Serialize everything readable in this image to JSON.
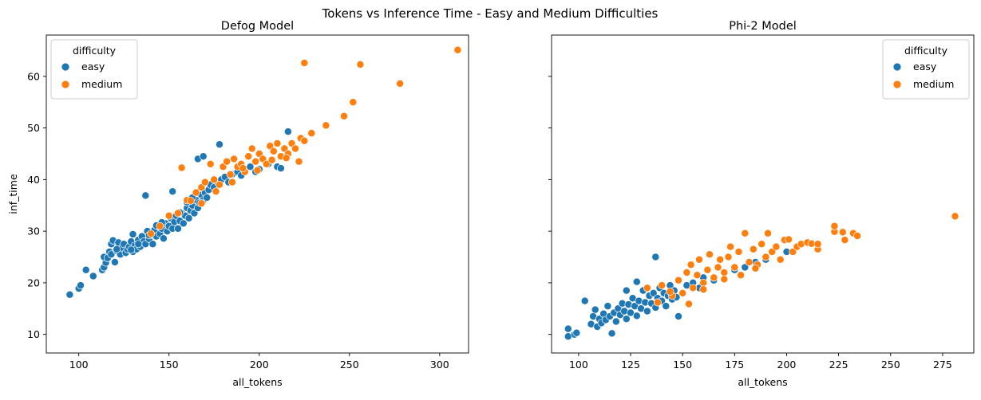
{
  "figure_title": "Tokens vs Inference Time - Easy and Medium Difficulties",
  "colors": {
    "easy": "#1f77b4",
    "medium": "#ff7f0e"
  },
  "chart_data": [
    {
      "type": "scatter",
      "title": "Defog Model",
      "xlabel": "all_tokens",
      "ylabel": "inf_time",
      "xlim": [
        82,
        316
      ],
      "ylim": [
        6.4,
        68
      ],
      "xticks": [
        100,
        150,
        200,
        250,
        300
      ],
      "yticks": [
        10,
        20,
        30,
        40,
        50,
        60
      ],
      "legend": {
        "title": "difficulty",
        "position": "top-left"
      },
      "grid": false,
      "series": [
        {
          "name": "easy",
          "color": "#1f77b4",
          "points": [
            [
              95,
              17.7
            ],
            [
              100,
              18.9
            ],
            [
              101,
              19.5
            ],
            [
              104,
              22.5
            ],
            [
              108,
              21.3
            ],
            [
              113,
              22.5
            ],
            [
              114,
              23.0
            ],
            [
              115,
              23.9
            ],
            [
              114,
              25.0
            ],
            [
              116,
              24.8
            ],
            [
              117,
              26.0
            ],
            [
              118,
              25.5
            ],
            [
              118,
              27.5
            ],
            [
              119,
              28.2
            ],
            [
              120,
              24.0
            ],
            [
              121,
              26.2
            ],
            [
              122,
              27.8
            ],
            [
              123,
              25.5
            ],
            [
              124,
              26.8
            ],
            [
              125,
              27.5
            ],
            [
              126,
              25.8
            ],
            [
              127,
              26.5
            ],
            [
              128,
              27.0
            ],
            [
              129,
              28.0
            ],
            [
              130,
              26.0
            ],
            [
              131,
              27.2
            ],
            [
              132,
              26.5
            ],
            [
              133,
              28.3
            ],
            [
              134,
              27.0
            ],
            [
              135,
              29.0
            ],
            [
              136,
              28.0
            ],
            [
              137,
              27.5
            ],
            [
              138,
              30.0
            ],
            [
              139,
              28.5
            ],
            [
              140,
              29.3
            ],
            [
              141,
              27.5
            ],
            [
              142,
              30.2
            ],
            [
              143,
              29.0
            ],
            [
              144,
              31.0
            ],
            [
              145,
              29.5
            ],
            [
              146,
              30.5
            ],
            [
              147,
              28.6
            ],
            [
              148,
              31.5
            ],
            [
              149,
              30.0
            ],
            [
              150,
              31.0
            ],
            [
              151,
              32.5
            ],
            [
              152,
              30.5
            ],
            [
              153,
              31.8
            ],
            [
              154,
              33.0
            ],
            [
              155,
              30.5
            ],
            [
              156,
              32.0
            ],
            [
              157,
              33.5
            ],
            [
              158,
              31.5
            ],
            [
              159,
              33.0
            ],
            [
              160,
              34.5
            ],
            [
              161,
              32.5
            ],
            [
              162,
              34.0
            ],
            [
              163,
              35.0
            ],
            [
              164,
              33.5
            ],
            [
              165,
              36.0
            ],
            [
              166,
              34.5
            ],
            [
              167,
              35.5
            ],
            [
              168,
              37.0
            ],
            [
              169,
              36.0
            ],
            [
              170,
              37.5
            ],
            [
              171,
              36.5
            ],
            [
              172,
              38.0
            ],
            [
              173,
              39.0
            ],
            [
              175,
              38.5
            ],
            [
              177,
              39.5
            ],
            [
              179,
              40.0
            ],
            [
              181,
              40.5
            ],
            [
              183,
              39.5
            ],
            [
              185,
              41.0
            ],
            [
              188,
              41.5
            ],
            [
              190,
              40.8
            ],
            [
              192,
              42.0
            ],
            [
              195,
              42.5
            ],
            [
              198,
              41.5
            ],
            [
              200,
              42.0
            ],
            [
              205,
              43.0
            ],
            [
              210,
              42.5
            ],
            [
              212,
              42.2
            ],
            [
              216,
              49.3
            ],
            [
              137,
              36.9
            ],
            [
              152,
              37.7
            ],
            [
              166,
              44.0
            ],
            [
              169,
              44.5
            ],
            [
              178,
              46.8
            ],
            [
              121,
              26.5
            ],
            [
              129,
              26.4
            ],
            [
              133,
              27.5
            ],
            [
              139,
              29.2
            ],
            [
              146,
              31.7
            ],
            [
              156,
              33.6
            ],
            [
              163,
              36.5
            ],
            [
              130,
              29.4
            ],
            [
              143,
              31.1
            ],
            [
              160,
              35.6
            ]
          ]
        },
        {
          "name": "medium",
          "color": "#ff7f0e",
          "points": [
            [
              140,
              29.5
            ],
            [
              145,
              31.0
            ],
            [
              150,
              33.0
            ],
            [
              155,
              33.5
            ],
            [
              157,
              42.3
            ],
            [
              160,
              36.0
            ],
            [
              165,
              37.5
            ],
            [
              168,
              38.5
            ],
            [
              170,
              39.5
            ],
            [
              173,
              43.0
            ],
            [
              175,
              40.0
            ],
            [
              178,
              39.0
            ],
            [
              180,
              42.5
            ],
            [
              182,
              43.5
            ],
            [
              184,
              41.0
            ],
            [
              186,
              44.0
            ],
            [
              188,
              42.5
            ],
            [
              190,
              43.0
            ],
            [
              192,
              41.5
            ],
            [
              194,
              44.5
            ],
            [
              196,
              46.0
            ],
            [
              198,
              43.5
            ],
            [
              200,
              45.0
            ],
            [
              202,
              44.0
            ],
            [
              204,
              43.0
            ],
            [
              206,
              46.5
            ],
            [
              208,
              45.5
            ],
            [
              210,
              47.0
            ],
            [
              212,
              44.5
            ],
            [
              214,
              46.0
            ],
            [
              216,
              45.0
            ],
            [
              218,
              47.0
            ],
            [
              220,
              46.0
            ],
            [
              222,
              43.5
            ],
            [
              223,
              48.0
            ],
            [
              225,
              47.5
            ],
            [
              229,
              49.0
            ],
            [
              237,
              50.5
            ],
            [
              247,
              52.3
            ],
            [
              252,
              55.0
            ],
            [
              225,
              62.6
            ],
            [
              256,
              62.3
            ],
            [
              278,
              58.6
            ],
            [
              310,
              65.1
            ],
            [
              185,
              39.5
            ],
            [
              191,
              42.2
            ],
            [
              199,
              41.8
            ],
            [
              207,
              43.8
            ],
            [
              215,
              44.2
            ],
            [
              176,
              37.7
            ],
            [
              168,
              35.4
            ],
            [
              162,
              35.9
            ]
          ]
        }
      ]
    },
    {
      "type": "scatter",
      "title": "Phi-2 Model",
      "xlabel": "all_tokens",
      "ylabel": "",
      "xlim": [
        87,
        290
      ],
      "ylim": [
        6.4,
        68
      ],
      "xticks": [
        100,
        125,
        150,
        175,
        200,
        225,
        250,
        275
      ],
      "yticks": [
        10,
        20,
        30,
        40,
        50,
        60
      ],
      "legend": {
        "title": "difficulty",
        "position": "top-right"
      },
      "grid": false,
      "series": [
        {
          "name": "easy",
          "color": "#1f77b4",
          "points": [
            [
              95,
              9.6
            ],
            [
              95,
              11.1
            ],
            [
              98,
              10.0
            ],
            [
              99,
              10.3
            ],
            [
              103,
              16.5
            ],
            [
              106,
              12.0
            ],
            [
              107,
              13.5
            ],
            [
              108,
              14.8
            ],
            [
              109,
              11.5
            ],
            [
              110,
              13.0
            ],
            [
              111,
              12.2
            ],
            [
              112,
              14.0
            ],
            [
              113,
              12.8
            ],
            [
              114,
              15.5
            ],
            [
              115,
              13.5
            ],
            [
              116,
              10.2
            ],
            [
              117,
              14.2
            ],
            [
              118,
              12.5
            ],
            [
              119,
              15.0
            ],
            [
              120,
              13.8
            ],
            [
              121,
              16.0
            ],
            [
              122,
              14.5
            ],
            [
              123,
              13.0
            ],
            [
              124,
              15.8
            ],
            [
              125,
              14.2
            ],
            [
              126,
              17.0
            ],
            [
              127,
              15.5
            ],
            [
              128,
              13.6
            ],
            [
              129,
              16.5
            ],
            [
              130,
              15.0
            ],
            [
              131,
              18.5
            ],
            [
              132,
              16.2
            ],
            [
              133,
              14.5
            ],
            [
              134,
              17.5
            ],
            [
              135,
              16.0
            ],
            [
              136,
              18.0
            ],
            [
              137,
              15.2
            ],
            [
              138,
              17.0
            ],
            [
              139,
              19.0
            ],
            [
              140,
              16.5
            ],
            [
              141,
              18.0
            ],
            [
              142,
              15.5
            ],
            [
              143,
              17.5
            ],
            [
              144,
              19.5
            ],
            [
              145,
              16.8
            ],
            [
              146,
              18.5
            ],
            [
              147,
              17.2
            ],
            [
              148,
              13.5
            ],
            [
              150,
              18.0
            ],
            [
              152,
              19.5
            ],
            [
              155,
              20.0
            ],
            [
              158,
              19.0
            ],
            [
              160,
              21.0
            ],
            [
              165,
              20.5
            ],
            [
              170,
              22.0
            ],
            [
              175,
              22.5
            ],
            [
              180,
              23.0
            ],
            [
              185,
              24.0
            ],
            [
              190,
              24.5
            ],
            [
              200,
              26.0
            ],
            [
              137,
              25.0
            ],
            [
              128,
              20.2
            ],
            [
              123,
              18.5
            ]
          ]
        },
        {
          "name": "medium",
          "color": "#ff7f0e",
          "points": [
            [
              133,
              19.0
            ],
            [
              140,
              19.5
            ],
            [
              145,
              17.5
            ],
            [
              148,
              20.5
            ],
            [
              150,
              18.0
            ],
            [
              152,
              22.0
            ],
            [
              154,
              23.5
            ],
            [
              155,
              19.0
            ],
            [
              157,
              21.5
            ],
            [
              158,
              24.5
            ],
            [
              160,
              20.0
            ],
            [
              162,
              22.5
            ],
            [
              163,
              25.5
            ],
            [
              165,
              21.0
            ],
            [
              167,
              23.0
            ],
            [
              168,
              24.5
            ],
            [
              170,
              22.0
            ],
            [
              172,
              25.0
            ],
            [
              173,
              27.0
            ],
            [
              175,
              23.0
            ],
            [
              177,
              26.0
            ],
            [
              178,
              21.5
            ],
            [
              180,
              29.6
            ],
            [
              182,
              24.0
            ],
            [
              184,
              26.5
            ],
            [
              186,
              23.5
            ],
            [
              188,
              27.5
            ],
            [
              190,
              25.0
            ],
            [
              191,
              29.6
            ],
            [
              193,
              26.0
            ],
            [
              195,
              27.0
            ],
            [
              197,
              24.5
            ],
            [
              199,
              28.3
            ],
            [
              201,
              28.4
            ],
            [
              203,
              26.0
            ],
            [
              205,
              27.0
            ],
            [
              207,
              27.5
            ],
            [
              210,
              27.8
            ],
            [
              212,
              27.6
            ],
            [
              215,
              26.5
            ],
            [
              215,
              27.5
            ],
            [
              223,
              29.9
            ],
            [
              223,
              31.0
            ],
            [
              227,
              29.8
            ],
            [
              228,
              28.3
            ],
            [
              232,
              29.6
            ],
            [
              234,
              29.1
            ],
            [
              281,
              32.9
            ],
            [
              153,
              15.9
            ],
            [
              160,
              18.7
            ],
            [
              170,
              20.7
            ],
            [
              185,
              22.8
            ],
            [
              144,
              18.3
            ],
            [
              138,
              16.2
            ]
          ]
        }
      ]
    }
  ]
}
